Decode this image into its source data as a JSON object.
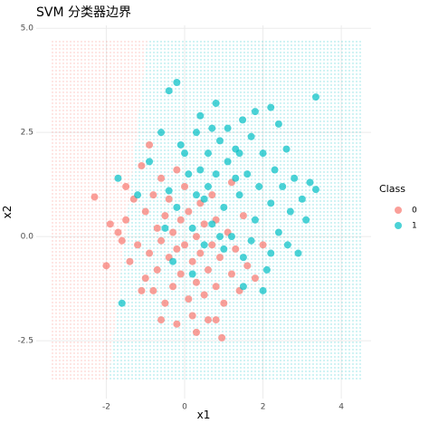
{
  "chart_data": {
    "type": "scatter",
    "title": "SVM 分类器边界",
    "x_label": "x1",
    "y_label": "x2",
    "legend_title": "Class",
    "xlim": [
      -3.79,
      4.76
    ],
    "ylim": [
      -3.89,
      5.07
    ],
    "xticks": [
      -2,
      0,
      2,
      4
    ],
    "yticks": [
      {
        "value": 5,
        "label": "5.0"
      },
      {
        "value": 2.5,
        "label": "2.5"
      },
      {
        "value": 0,
        "label": "0.0"
      },
      -2.5
    ],
    "grid": true,
    "decision_region": {
      "x_range": [
        -3.4,
        4.5
      ],
      "y_range": [
        -3.46,
        4.74
      ],
      "boundary": [
        [
          -0.95,
          4.74
        ],
        [
          -1.94,
          -3.46
        ]
      ]
    },
    "series": [
      {
        "name": "0",
        "color": "#F8766D",
        "x": [
          -2.3,
          -2.0,
          -1.9,
          -1.7,
          -1.6,
          -1.5,
          -1.4,
          -1.3,
          -1.2,
          -1.1,
          -1.0,
          -1.0,
          -0.9,
          -0.9,
          -0.8,
          -0.8,
          -0.7,
          -0.7,
          -0.6,
          -0.6,
          -0.5,
          -0.5,
          -0.4,
          -0.4,
          -0.3,
          -0.3,
          -0.2,
          -0.2,
          -0.1,
          -0.1,
          0.0,
          0.0,
          0.1,
          0.1,
          0.2,
          0.2,
          0.3,
          0.3,
          0.4,
          0.4,
          0.5,
          0.5,
          0.6,
          0.6,
          0.7,
          0.7,
          0.8,
          0.8,
          0.9,
          0.95,
          1.0,
          1.1,
          1.2,
          1.3,
          1.4,
          1.5,
          1.6,
          1.8,
          2.0,
          0.8,
          -1.1,
          -0.2,
          -1.5,
          0.3,
          -0.6,
          1.2
        ],
        "values": [
          0.95,
          -0.7,
          0.3,
          0.1,
          -0.1,
          0.4,
          -0.6,
          0.9,
          -0.2,
          1.7,
          0.6,
          -1.0,
          2.2,
          -0.4,
          1.0,
          -1.3,
          0.2,
          -0.8,
          1.4,
          -0.1,
          -1.6,
          0.5,
          -0.5,
          0.9,
          -1.2,
          0.1,
          -2.1,
          -0.3,
          0.4,
          -0.9,
          -0.2,
          1.2,
          -1.5,
          0.6,
          -0.6,
          -1.9,
          0.0,
          -1.1,
          0.8,
          -0.4,
          -1.4,
          0.3,
          -0.8,
          -2.0,
          -0.2,
          1.0,
          -1.2,
          0.4,
          -0.5,
          -2.43,
          -1.6,
          0.1,
          -0.9,
          -0.3,
          -1.3,
          0.5,
          -0.7,
          -1.0,
          -0.2,
          -2.0,
          -1.3,
          1.6,
          1.2,
          -2.3,
          -2.0,
          1.3
        ]
      },
      {
        "name": "1",
        "color": "#00BFC4",
        "x": [
          3.35,
          -1.6,
          -0.2,
          -0.4,
          1.48,
          3.35,
          2.63,
          0.8,
          2.2,
          -1.7,
          -1.2,
          -0.9,
          -0.6,
          -0.4,
          -0.2,
          0.0,
          0.1,
          0.2,
          0.3,
          0.4,
          0.5,
          0.6,
          0.7,
          0.8,
          0.9,
          1.0,
          1.1,
          1.2,
          1.3,
          1.4,
          1.5,
          1.6,
          1.7,
          1.8,
          1.9,
          2.0,
          2.1,
          2.2,
          2.3,
          2.4,
          2.5,
          2.6,
          2.7,
          2.8,
          3.0,
          3.1,
          2.9,
          2.0,
          1.5,
          1.0,
          0.5,
          0.2,
          -0.3,
          1.1,
          0.4,
          -0.1,
          1.8,
          2.4,
          0.6,
          1.3,
          0.9,
          1.7,
          3.2,
          2.2,
          0.3,
          -0.5,
          1.4,
          0.7
        ],
        "values": [
          3.35,
          -1.6,
          3.7,
          3.5,
          2.8,
          1.13,
          -0.2,
          3.2,
          3.1,
          1.4,
          1.0,
          1.8,
          2.5,
          1.1,
          0.7,
          2.0,
          1.5,
          0.2,
          2.5,
          1.6,
          0.9,
          2.0,
          0.3,
          1.5,
          2.3,
          0.7,
          1.8,
          0.0,
          2.1,
          1.0,
          -0.5,
          1.5,
          2.4,
          0.4,
          1.2,
          2.0,
          -0.8,
          0.8,
          1.6,
          0.1,
          1.2,
          2.1,
          0.6,
          1.4,
          0.9,
          0.4,
          -0.4,
          -1.3,
          -1.2,
          -0.3,
          -0.2,
          -0.9,
          -0.6,
          2.6,
          2.9,
          2.2,
          3.0,
          2.7,
          1.2,
          1.4,
          0.0,
          -0.1,
          1.3,
          -0.4,
          1.0,
          0.2,
          2.0,
          2.6
        ]
      }
    ]
  }
}
